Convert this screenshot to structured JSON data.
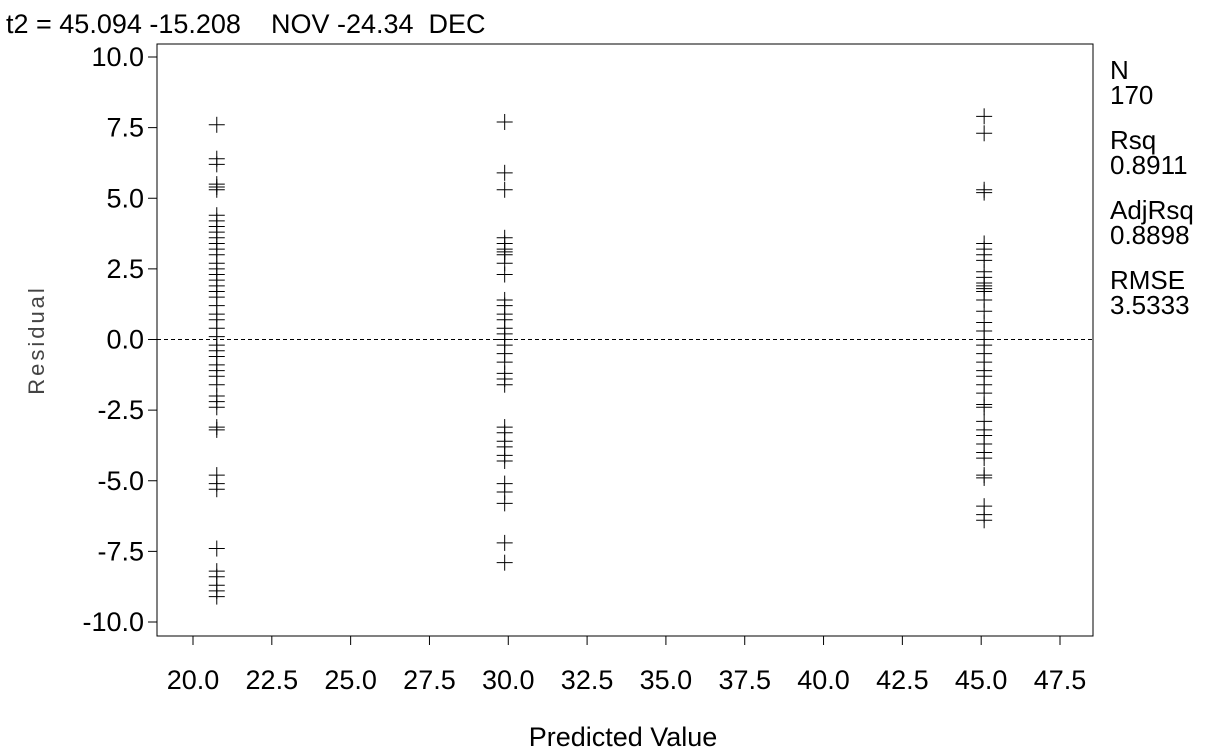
{
  "chart_data": {
    "type": "scatter",
    "title": "t2 = 45.094 -15.208    NOV -24.34  DEC",
    "xlabel": "Predicted Value",
    "ylabel": "Residual",
    "xlim": [
      18.5,
      48.5
    ],
    "ylim": [
      -10.5,
      10.5
    ],
    "xticks": [
      "20.0",
      "22.5",
      "25.0",
      "27.5",
      "30.0",
      "32.5",
      "35.0",
      "37.5",
      "40.0",
      "42.5",
      "45.0",
      "47.5"
    ],
    "yticks": [
      "10.0",
      "7.5",
      "5.0",
      "2.5",
      "0.0",
      "-2.5",
      "-5.0",
      "-7.5",
      "-10.0"
    ],
    "reference_line": 0.0,
    "marker": "+",
    "grid": false,
    "stats": [
      {
        "label": "N",
        "value": "170"
      },
      {
        "label": "Rsq",
        "value": "0.8911"
      },
      {
        "label": "AdjRsq",
        "value": "0.8898"
      },
      {
        "label": "RMSE",
        "value": "3.5333"
      }
    ],
    "points": [
      {
        "x": 20.754,
        "residuals": [
          7.6,
          6.4,
          6.2,
          5.5,
          5.4,
          5.3,
          4.4,
          4.2,
          4.0,
          3.8,
          3.6,
          3.4,
          3.2,
          3.0,
          2.7,
          2.5,
          2.3,
          2.1,
          1.9,
          1.7,
          1.5,
          1.2,
          0.9,
          0.7,
          0.4,
          0.1,
          -0.2,
          -0.4,
          -0.6,
          -0.9,
          -1.1,
          -1.3,
          -1.6,
          -2.0,
          -2.2,
          -2.4,
          -3.1,
          -3.2,
          -4.8,
          -5.1,
          -5.3,
          -7.4,
          -8.2,
          -8.4,
          -8.7,
          -8.9,
          -9.1
        ]
      },
      {
        "x": 29.886,
        "residuals": [
          7.7,
          5.9,
          5.3,
          3.6,
          3.4,
          3.2,
          3.1,
          3.0,
          2.7,
          2.3,
          1.4,
          1.2,
          0.9,
          0.7,
          0.4,
          0.2,
          0.0,
          -0.2,
          -0.5,
          -0.8,
          -1.2,
          -1.4,
          -1.6,
          -3.1,
          -3.3,
          -3.6,
          -3.8,
          -4.1,
          -4.3,
          -5.1,
          -5.4,
          -5.8,
          -7.2,
          -7.9
        ]
      },
      {
        "x": 45.094,
        "residuals": [
          7.9,
          7.3,
          5.3,
          5.2,
          3.4,
          3.2,
          3.0,
          2.8,
          2.4,
          2.2,
          2.0,
          1.9,
          1.8,
          1.7,
          1.4,
          1.0,
          0.6,
          0.3,
          0.0,
          -0.2,
          -0.5,
          -0.8,
          -1.1,
          -1.3,
          -1.6,
          -1.9,
          -2.3,
          -2.4,
          -2.9,
          -3.2,
          -3.4,
          -3.7,
          -4.0,
          -4.2,
          -4.8,
          -4.9,
          -5.9,
          -6.2,
          -6.4
        ]
      }
    ]
  }
}
